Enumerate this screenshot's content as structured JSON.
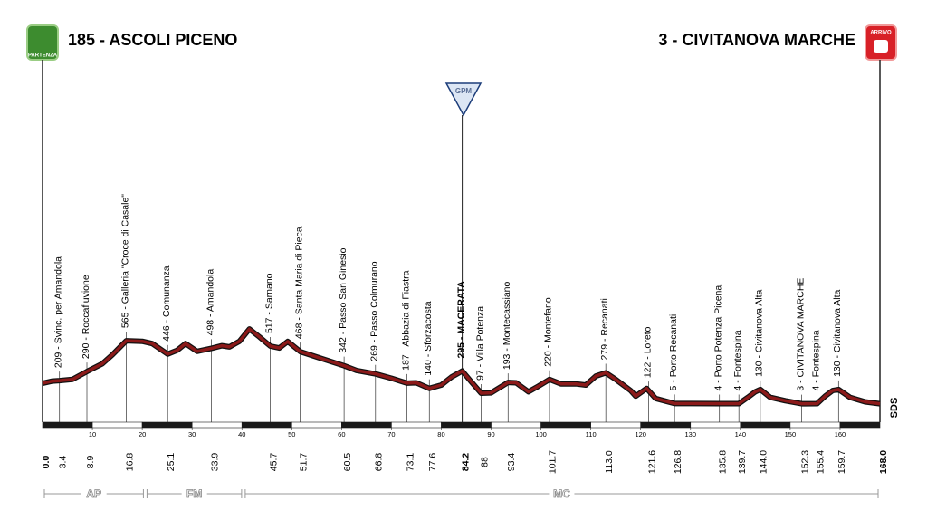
{
  "chart_data": {
    "type": "profile",
    "start": {
      "label": "185 - ASCOLI PICENO",
      "badge": "PARTENZA",
      "km": {
        "value": 0,
        "label": "0.0"
      }
    },
    "finish": {
      "label": "3 - CIVITANOVA MARCHE",
      "badge": "ARRIVO",
      "km": {
        "value": 168,
        "label": "168.0"
      }
    },
    "gpm": {
      "label": "GPM",
      "km": 84.2
    },
    "logo": "SDS",
    "xlim": [
      0,
      168
    ],
    "ylim": [
      0,
      800
    ],
    "xticks": [
      10,
      20,
      30,
      40,
      50,
      60,
      70,
      80,
      90,
      100,
      110,
      120,
      130,
      140,
      150,
      160
    ],
    "color": "#8b1a1a",
    "profile": {
      "km": [
        0,
        2,
        3.4,
        6,
        8.9,
        12,
        14,
        16.8,
        20,
        22,
        25.1,
        27,
        28.7,
        31,
        33.9,
        36,
        37.5,
        39.5,
        41.5,
        43.5,
        45.7,
        47.5,
        49.2,
        51.7,
        55,
        60.5,
        63,
        66.8,
        70,
        73.1,
        75,
        77.6,
        80,
        82,
        84.2,
        86,
        88,
        90,
        93.4,
        95,
        97.5,
        99.5,
        101.7,
        104,
        107,
        109,
        111,
        113,
        115,
        118,
        119,
        121.2,
        123,
        126.8,
        130,
        135.8,
        139.7,
        141.5,
        143,
        144,
        146,
        149,
        152.3,
        155.4,
        157,
        158.5,
        159.7,
        162,
        165,
        168
      ],
      "elevation": [
        185,
        205,
        209,
        220,
        290,
        360,
        440,
        565,
        560,
        540,
        446,
        480,
        540,
        470,
        498,
        520,
        510,
        560,
        670,
        600,
        517,
        500,
        558,
        468,
        420,
        342,
        300,
        269,
        230,
        187,
        190,
        140,
        170,
        240,
        295,
        200,
        97,
        100,
        193,
        190,
        110,
        160,
        220,
        180,
        180,
        170,
        250,
        279,
        220,
        120,
        70,
        140,
        50,
        5,
        5,
        4,
        4,
        60,
        110,
        130,
        60,
        30,
        3,
        4,
        70,
        120,
        130,
        60,
        20,
        3
      ]
    },
    "waypoints": [
      {
        "km": 3.4,
        "label": "209 - Svinc. per Amandola"
      },
      {
        "km": 8.9,
        "label": "290 - Roccafluvione"
      },
      {
        "km": 16.8,
        "label": "565 - Galleria \"Croce di Casale\""
      },
      {
        "km": 25.1,
        "label": "446 - Comunanza"
      },
      {
        "km": 33.9,
        "label": "498 - Amandola"
      },
      {
        "km": 45.7,
        "label": "517 - Sarnano"
      },
      {
        "km": 51.7,
        "label": "468 - Santa Maria di Pieca"
      },
      {
        "km": 60.5,
        "label": "342 - Passo San Ginesio"
      },
      {
        "km": 66.8,
        "label": "269 - Passo Colmurano"
      },
      {
        "km": 73.1,
        "label": "187 - Abbazia di Fiastra"
      },
      {
        "km": 77.6,
        "label": "140 - Sforzacosta"
      },
      {
        "km": 84.2,
        "label": "295 - MACERATA",
        "bold": true
      },
      {
        "km": 88.0,
        "label": "97 - Villa Potenza"
      },
      {
        "km": 93.4,
        "label": "193 - Montecassiano"
      },
      {
        "km": 101.7,
        "label": "220 - Montefano"
      },
      {
        "km": {
          "value": 113,
          "label": "113.0"
        },
        "label": "279 - Recanati"
      },
      {
        "km": 121.6,
        "label": "122 - Loreto"
      },
      {
        "km": 126.8,
        "label": "5 - Porto Recanati"
      },
      {
        "km": 135.8,
        "label": "4 - Porto Potenza Picena"
      },
      {
        "km": 139.7,
        "label": "4 - Fontespina"
      },
      {
        "km": {
          "value": 144,
          "label": "144.0"
        },
        "label": "130 - Civitanova Alta"
      },
      {
        "km": 152.3,
        "label": "3 - CIVITANOVA MARCHE"
      },
      {
        "km": 155.4,
        "label": "4 - Fontespina"
      },
      {
        "km": 159.7,
        "label": "130 - Civitanova Alta"
      }
    ],
    "regions": [
      {
        "name": "AP",
        "start": 0,
        "end": 20.6
      },
      {
        "name": "FM",
        "start": 20.6,
        "end": 40.3
      },
      {
        "name": "MC",
        "start": 40.3,
        "end": 168
      }
    ]
  }
}
